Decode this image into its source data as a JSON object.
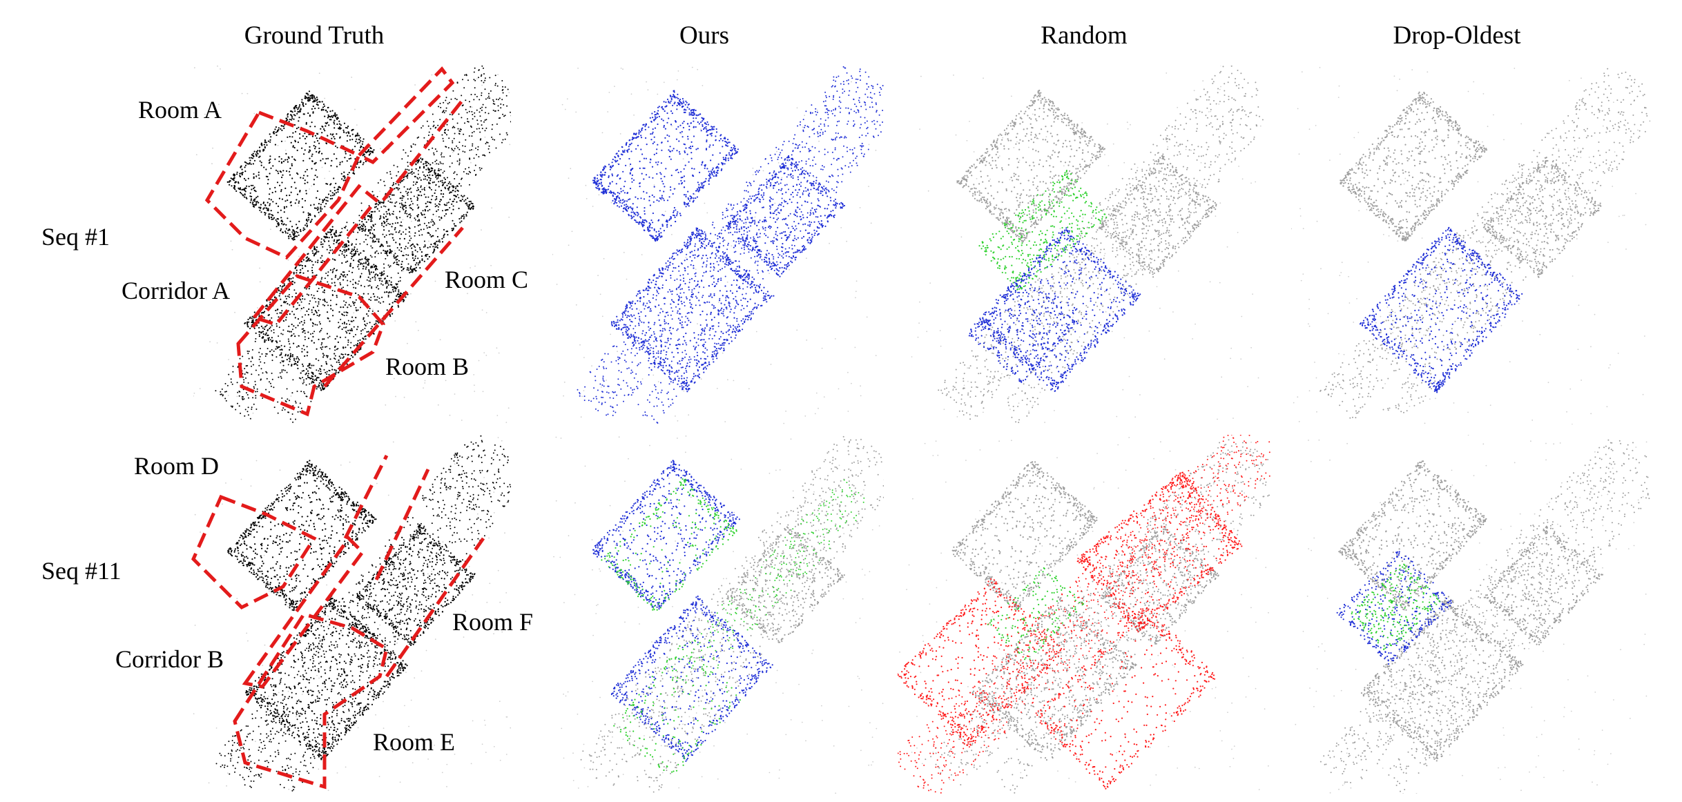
{
  "columns": {
    "ground_truth": "Ground Truth",
    "ours": "Ours",
    "random": "Random",
    "drop_oldest": "Drop-Oldest"
  },
  "rows": {
    "seq1": "Seq #1",
    "seq11": "Seq #11"
  },
  "regions_seq1": {
    "room_a": "Room A",
    "corridor_a": "Corridor A",
    "room_b": "Room B",
    "room_c": "Room C"
  },
  "regions_seq11": {
    "room_d": "Room D",
    "corridor_b": "Corridor B",
    "room_e": "Room E",
    "room_f": "Room F"
  },
  "colors": {
    "ground_truth_points": "#000000",
    "past_points": "#9e9e9e",
    "blue_points": "#1f2fd6",
    "green_points": "#2fd12f",
    "red_points": "#ff1a1a",
    "region_outline": "#e31b1b"
  }
}
